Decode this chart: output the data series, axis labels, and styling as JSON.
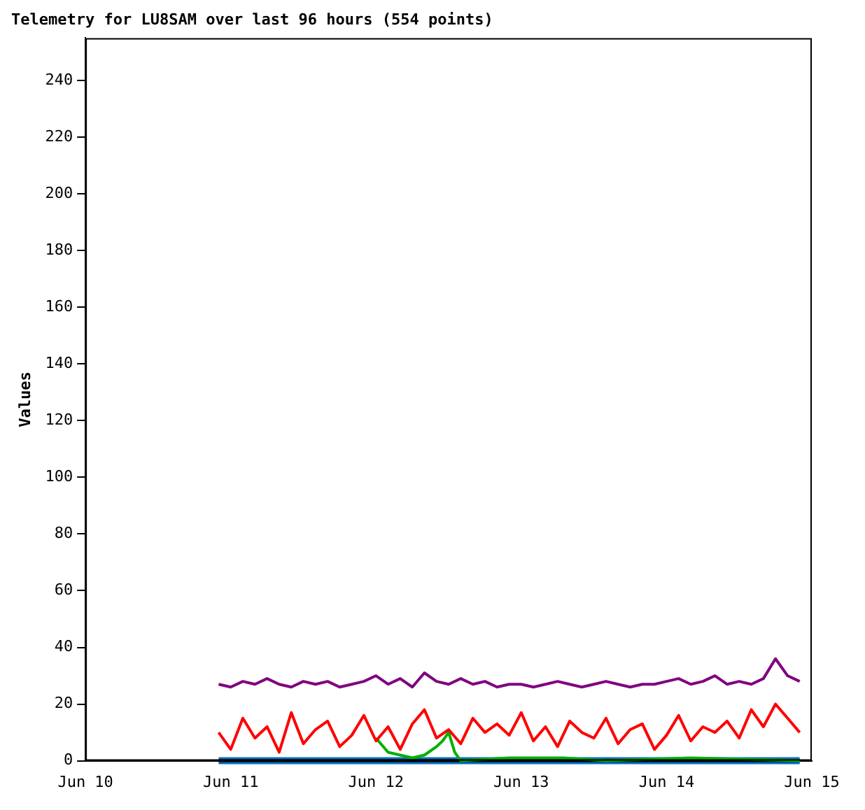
{
  "chart_data": {
    "type": "line",
    "title": "Telemetry for LU8SAM over last 96 hours (554 points)",
    "ylabel": "Values",
    "xlim": [
      "--06-10",
      "--06-15"
    ],
    "xticks": [
      {
        "value": "--06-10",
        "label": "Jun 10"
      },
      {
        "value": "--06-11",
        "label": "Jun 11"
      },
      {
        "value": "--06-12",
        "label": "Jun 12"
      },
      {
        "value": "--06-13",
        "label": "Jun 13"
      },
      {
        "value": "--06-14",
        "label": "Jun 14"
      },
      {
        "value": "--06-15",
        "label": "Jun 15"
      }
    ],
    "ylim": [
      0,
      255
    ],
    "yticks": [
      0,
      20,
      40,
      60,
      80,
      100,
      120,
      140,
      160,
      180,
      200,
      220,
      240
    ],
    "grid": false,
    "legend": false,
    "marker": "none",
    "line_style": "solid",
    "x": [
      "--06-10T22:00",
      "--06-11T00:00",
      "--06-11T02:00",
      "--06-11T04:00",
      "--06-11T06:00",
      "--06-11T08:00",
      "--06-11T10:00",
      "--06-11T12:00",
      "--06-11T14:00",
      "--06-11T16:00",
      "--06-11T18:00",
      "--06-11T20:00",
      "--06-11T22:00",
      "--06-12T00:00",
      "--06-12T02:00",
      "--06-12T04:00",
      "--06-12T06:00",
      "--06-12T08:00",
      "--06-12T10:00",
      "--06-12T12:00",
      "--06-12T14:00",
      "--06-12T16:00",
      "--06-12T18:00",
      "--06-12T20:00",
      "--06-12T22:00",
      "--06-13T00:00",
      "--06-13T02:00",
      "--06-13T04:00",
      "--06-13T06:00",
      "--06-13T08:00",
      "--06-13T10:00",
      "--06-13T12:00",
      "--06-13T14:00",
      "--06-13T16:00",
      "--06-13T18:00",
      "--06-13T20:00",
      "--06-13T22:00",
      "--06-14T00:00",
      "--06-14T02:00",
      "--06-14T04:00",
      "--06-14T06:00",
      "--06-14T08:00",
      "--06-14T10:00",
      "--06-14T12:00",
      "--06-14T14:00",
      "--06-14T16:00",
      "--06-14T18:00",
      "--06-14T20:00",
      "--06-14T22:00"
    ],
    "series": [
      {
        "color": "#0070c0",
        "x": [
          "--06-10T22:00",
          "--06-14T22:00"
        ],
        "values": [
          0,
          0
        ]
      },
      {
        "color": "#000000",
        "x": [
          "--06-10T22:00",
          "--06-14T22:00"
        ],
        "values": [
          0,
          0
        ]
      },
      {
        "color": "#00b000",
        "x": [
          "--06-12T00:00",
          "--06-12T02:00",
          "--06-12T04:00",
          "--06-12T06:00",
          "--06-12T08:00",
          "--06-12T10:00",
          "--06-12T11:00",
          "--06-12T12:00",
          "--06-12T13:00",
          "--06-12T14:00",
          "--06-12T22:00",
          "--06-13T07:00",
          "--06-13T14:00",
          "--06-14T04:00",
          "--06-14T22:00"
        ],
        "values": [
          8,
          3,
          2,
          1,
          2,
          5,
          7,
          10,
          3,
          0,
          1,
          1,
          0,
          1,
          0
        ]
      },
      {
        "color": "#ff0000",
        "values": [
          10,
          4,
          15,
          8,
          12,
          3,
          17,
          6,
          11,
          14,
          5,
          9,
          16,
          7,
          12,
          4,
          13,
          18,
          8,
          11,
          6,
          15,
          10,
          13,
          9,
          17,
          7,
          12,
          5,
          14,
          10,
          8,
          15,
          6,
          11,
          13,
          4,
          9,
          16,
          7,
          12,
          10,
          14,
          8,
          18,
          12,
          20,
          15,
          10
        ]
      },
      {
        "color": "#800080",
        "values": [
          27,
          26,
          28,
          27,
          29,
          27,
          26,
          28,
          27,
          28,
          26,
          27,
          28,
          30,
          27,
          29,
          26,
          31,
          28,
          27,
          29,
          27,
          28,
          26,
          27,
          27,
          26,
          27,
          28,
          27,
          26,
          27,
          28,
          27,
          26,
          27,
          27,
          28,
          29,
          27,
          28,
          30,
          27,
          28,
          27,
          29,
          36,
          30,
          28
        ]
      }
    ]
  }
}
